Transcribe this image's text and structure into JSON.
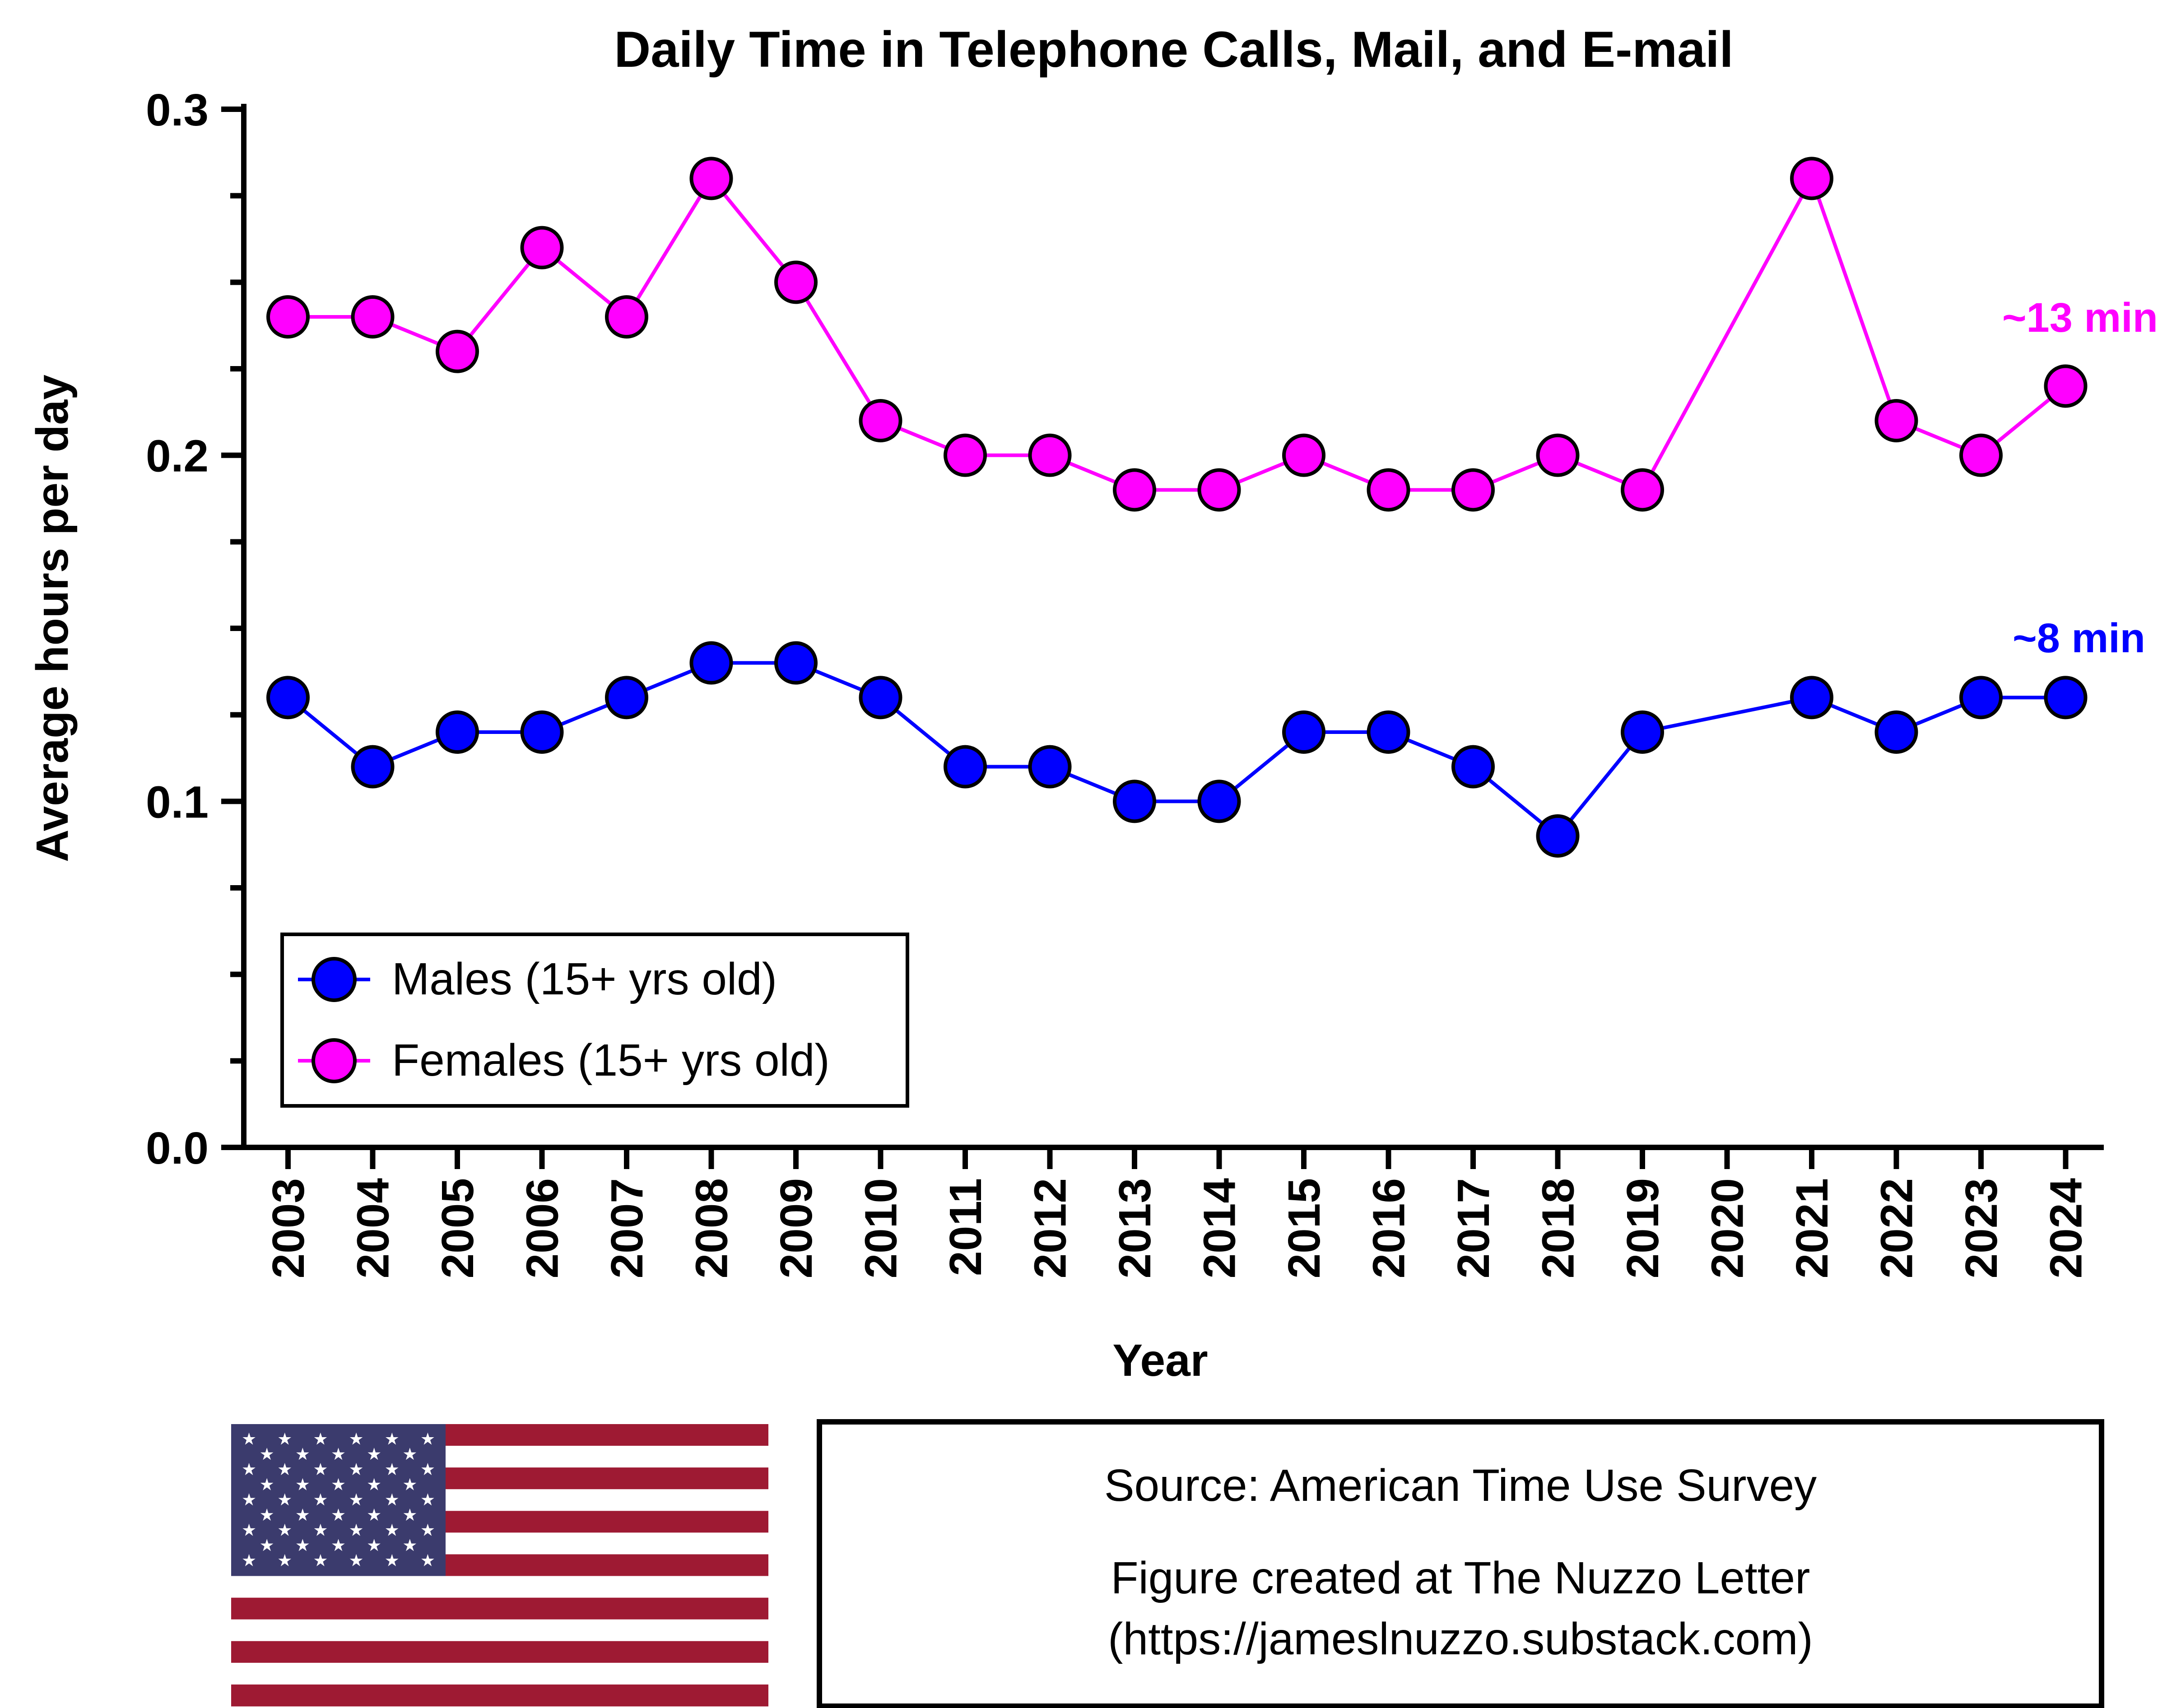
{
  "chart_data": {
    "type": "line",
    "title": "Daily Time in Telephone Calls, Mail, and E-mail",
    "xlabel": "Year",
    "ylabel": "Average hours per day",
    "categories": [
      "2003",
      "2004",
      "2005",
      "2006",
      "2007",
      "2008",
      "2009",
      "2010",
      "2011",
      "2012",
      "2013",
      "2014",
      "2015",
      "2016",
      "2017",
      "2018",
      "2019",
      "2020",
      "2021",
      "2022",
      "2023",
      "2024"
    ],
    "ylim": [
      0,
      0.3
    ],
    "yticks": [
      "0.0",
      "0.1",
      "0.2",
      "0.3"
    ],
    "grid": false,
    "legend_position": "bottom-left",
    "series": [
      {
        "name": "Males (15+ yrs old)",
        "color": "#0000ff",
        "values": [
          0.13,
          0.11,
          0.12,
          0.12,
          0.13,
          0.14,
          0.14,
          0.13,
          0.11,
          0.11,
          0.1,
          0.1,
          0.12,
          0.12,
          0.11,
          0.09,
          0.12,
          null,
          0.13,
          0.12,
          0.13,
          0.13
        ],
        "end_annotation": "~8 min"
      },
      {
        "name": "Females (15+ yrs old)",
        "color": "#ff00ff",
        "values": [
          0.24,
          0.24,
          0.23,
          0.26,
          0.24,
          0.28,
          0.25,
          0.21,
          0.2,
          0.2,
          0.19,
          0.19,
          0.2,
          0.19,
          0.19,
          0.2,
          0.19,
          null,
          0.28,
          0.21,
          0.2,
          0.22
        ],
        "end_annotation": "~13 min"
      }
    ]
  },
  "source_box": {
    "source": "Source: American Time Use Survey",
    "credit": "Figure created at The Nuzzo Letter",
    "url": "(https://jameslnuzzo.substack.com)"
  },
  "flag": {
    "icon": "us-flag-icon",
    "colors": {
      "red": "#9e1a33",
      "blue": "#3b3b6d",
      "white": "#ffffff"
    }
  }
}
